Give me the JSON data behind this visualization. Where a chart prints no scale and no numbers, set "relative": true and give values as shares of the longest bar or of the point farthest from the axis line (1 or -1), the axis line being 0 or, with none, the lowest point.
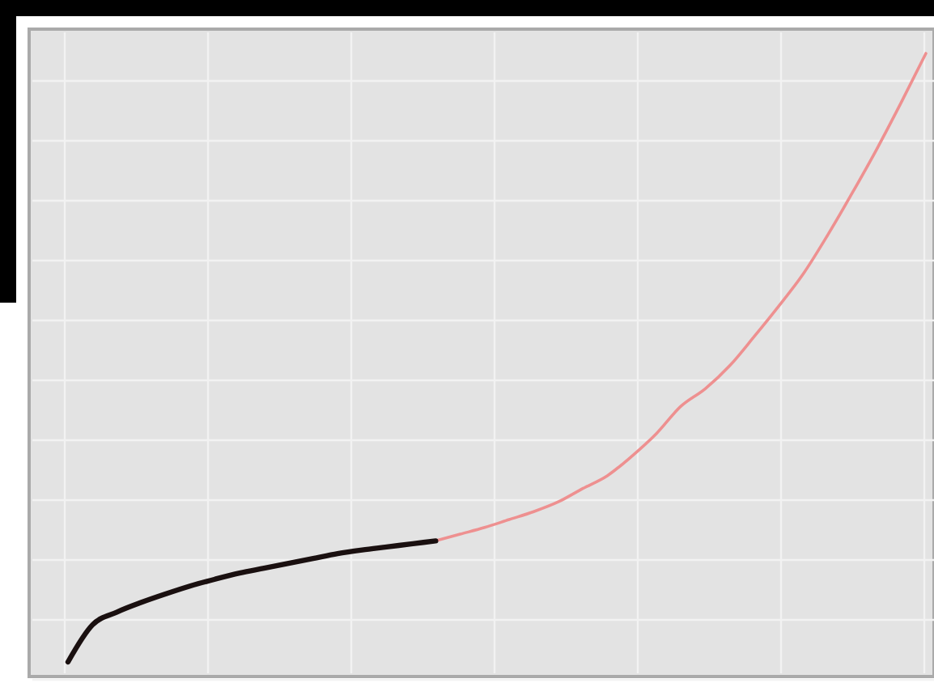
{
  "chart_data": {
    "type": "line",
    "relative": true,
    "grid": true,
    "marker": "none",
    "line_style": "solid",
    "categories": [
      null,
      null,
      null,
      null,
      null,
      null,
      null,
      null,
      null,
      null,
      null,
      null,
      null,
      null,
      null,
      null,
      null,
      null,
      null,
      null,
      null,
      null,
      null,
      null,
      null,
      null,
      null,
      null,
      null,
      null,
      null,
      null,
      null,
      null,
      null,
      null
    ],
    "series": [
      {
        "color": "#ee9090",
        "values": [
          null,
          null,
          null,
          null,
          null,
          null,
          null,
          null,
          null,
          null,
          null,
          null,
          null,
          null,
          null,
          0.199,
          0.21,
          0.221,
          0.234,
          0.247,
          0.263,
          0.285,
          0.306,
          0.338,
          0.375,
          0.42,
          0.449,
          0.487,
          0.535,
          0.585,
          0.638,
          0.702,
          0.771,
          0.843,
          0.92,
          1
        ]
      },
      {
        "color": "#1a1010",
        "values": [
          0,
          0.061,
          0.082,
          0.098,
          0.112,
          0.125,
          0.136,
          0.146,
          0.154,
          0.162,
          0.17,
          0.178,
          0.184,
          0.189,
          0.194,
          0.199,
          null,
          null,
          null,
          null,
          null,
          null,
          null,
          null,
          null,
          null,
          null,
          null,
          null,
          null,
          null,
          null,
          null,
          null,
          null,
          null
        ]
      }
    ]
  }
}
